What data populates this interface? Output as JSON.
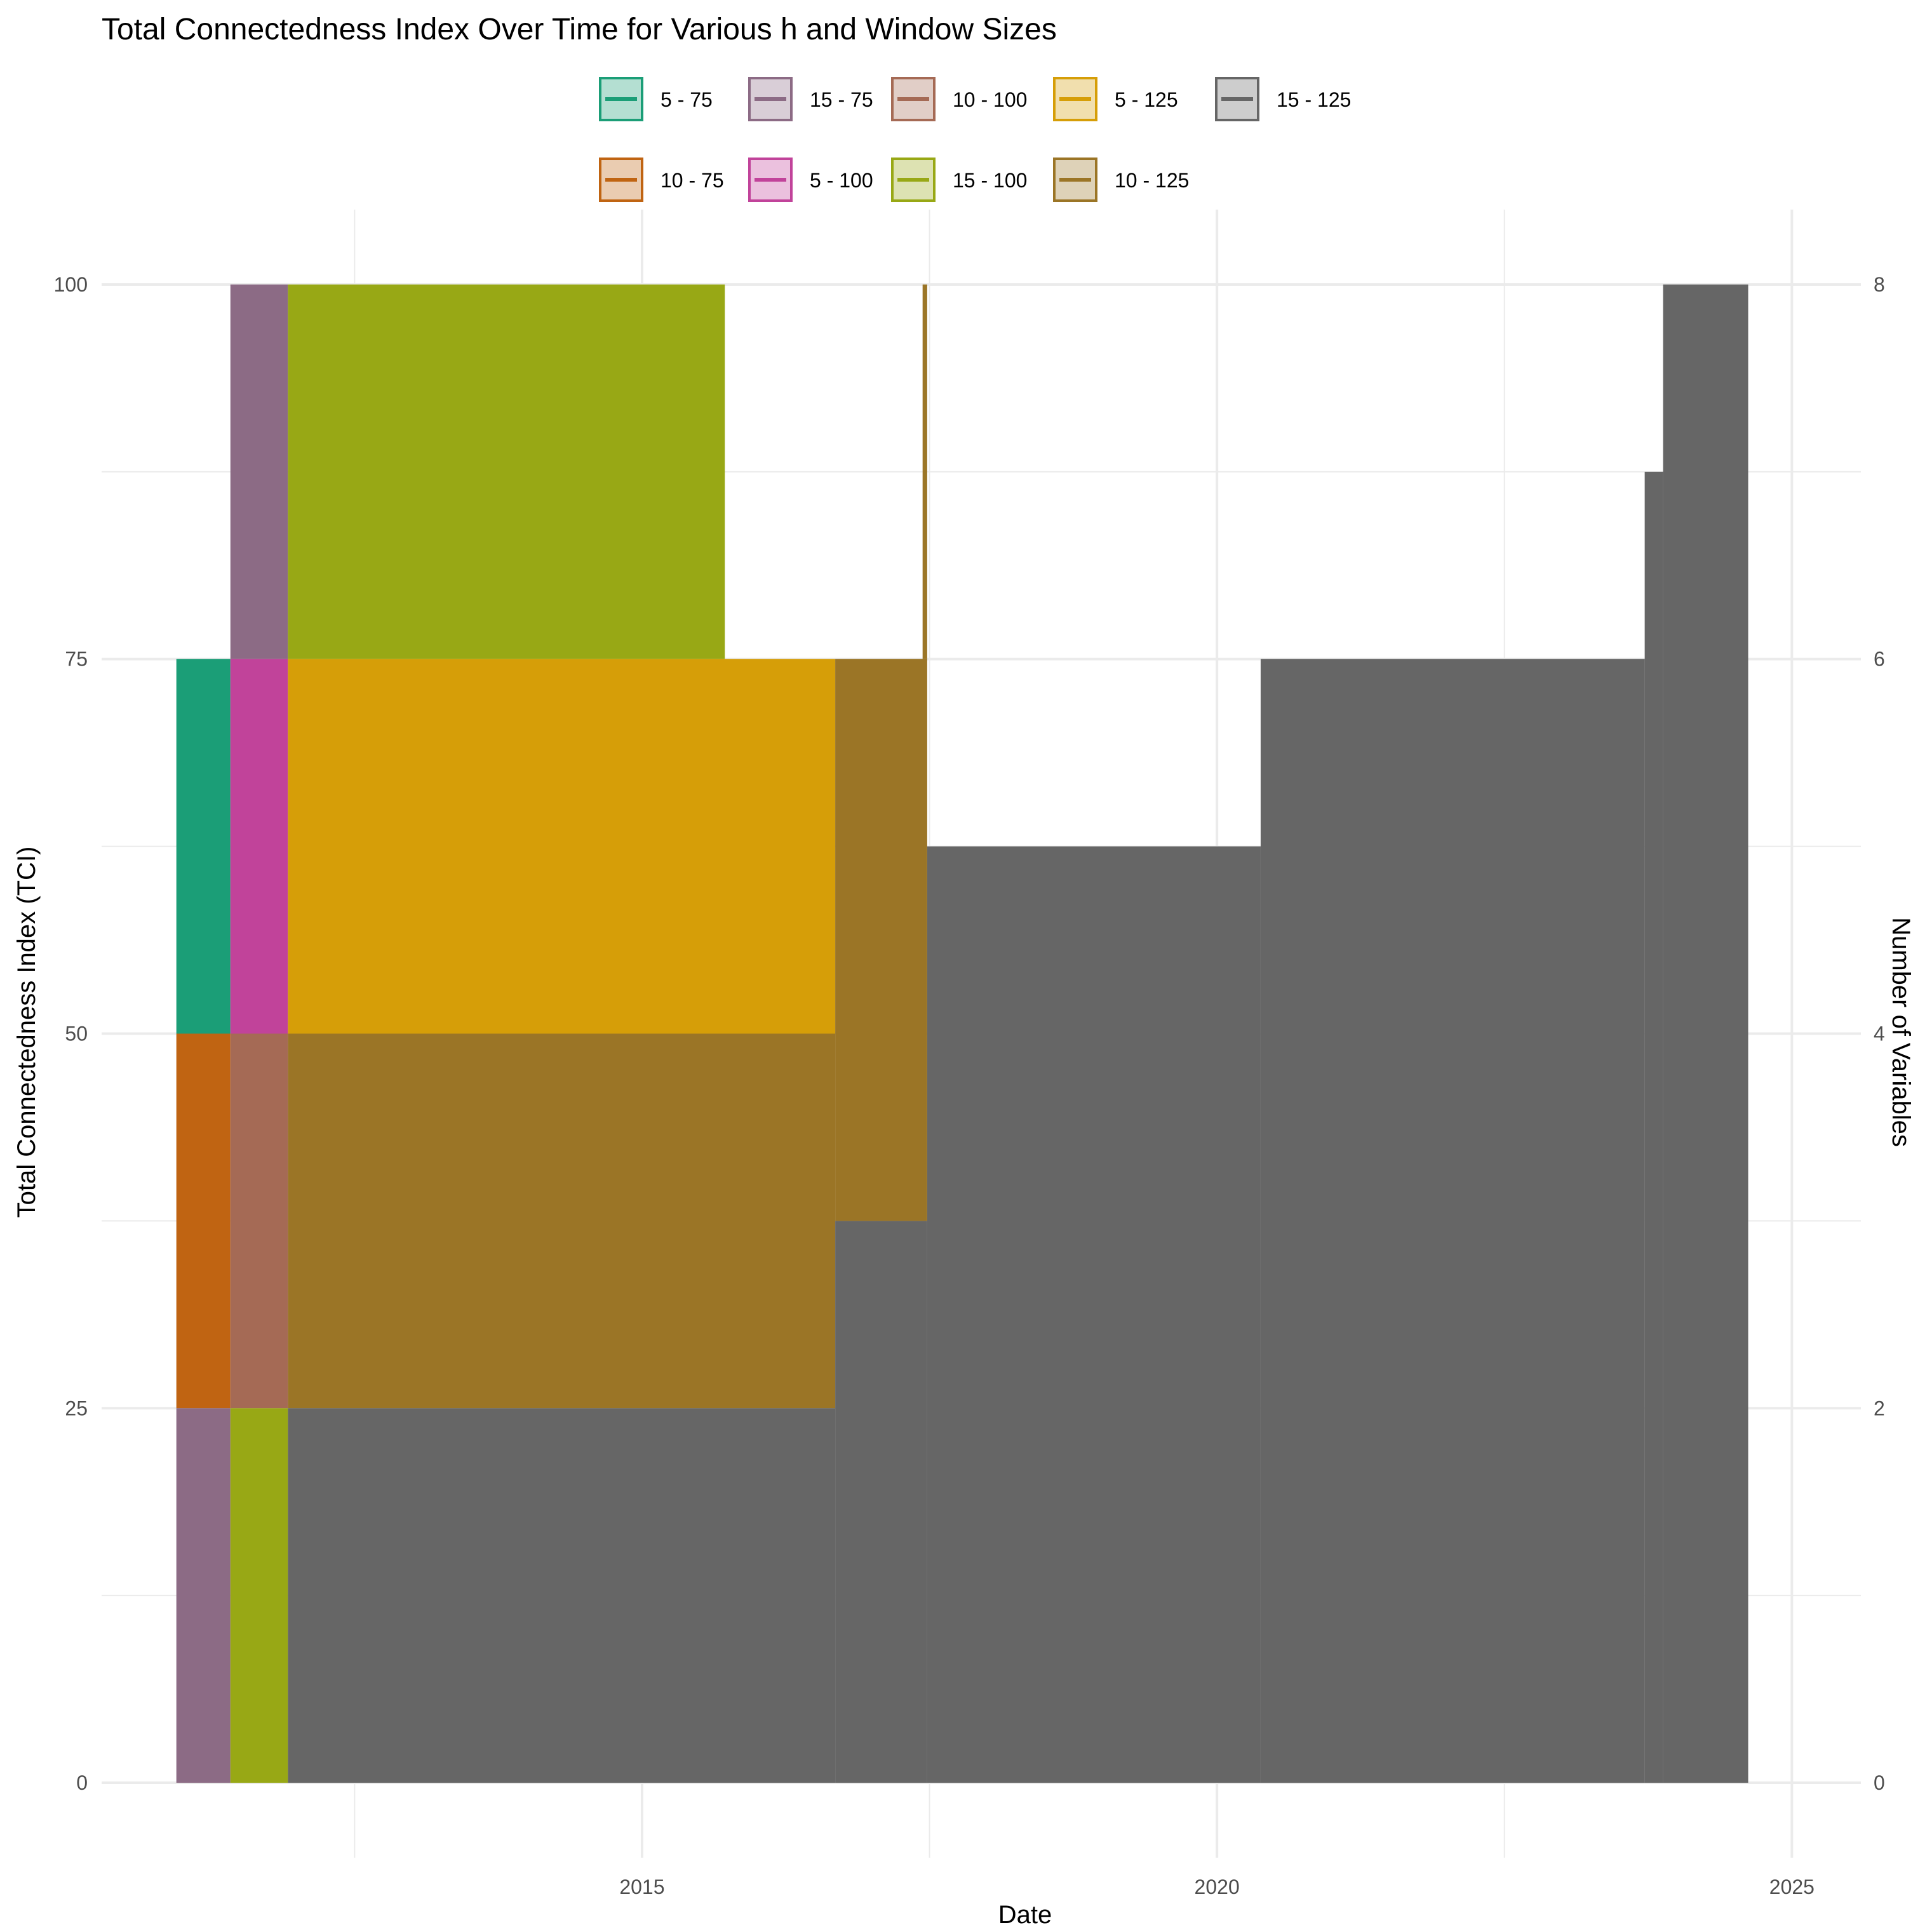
{
  "chart_data": {
    "type": "area",
    "title": "Total Connectedness Index Over Time for Various h and Window Sizes",
    "xlabel": "Date",
    "ylabel": "Total Connectedness Index (TCI)",
    "y2label": "Number of Variables",
    "xlim": [
      2010.3,
      2025.6
    ],
    "ylim": [
      -5,
      105
    ],
    "y2lim": [
      -0.4,
      8.4
    ],
    "x_ticks": [
      2015,
      2020,
      2025
    ],
    "y_ticks": [
      0,
      25,
      50,
      75,
      100
    ],
    "y2_ticks": [
      0,
      2,
      4,
      6,
      8
    ],
    "grid": true,
    "legend_position": "top",
    "series": [
      {
        "name": "5 - 75",
        "color": "#1b9e77",
        "blocks": [
          {
            "x0": 2010.95,
            "x1": 2011.42,
            "y0": 50,
            "y1": 75
          }
        ]
      },
      {
        "name": "10 - 75",
        "color": "#c06412",
        "blocks": [
          {
            "x0": 2010.95,
            "x1": 2011.42,
            "y0": 25,
            "y1": 50
          }
        ]
      },
      {
        "name": "15 - 75",
        "color": "#8c6b85",
        "blocks": [
          {
            "x0": 2010.95,
            "x1": 2011.42,
            "y0": 0,
            "y1": 25
          },
          {
            "x0": 2011.42,
            "x1": 2011.92,
            "y0": 75,
            "y1": 100
          }
        ]
      },
      {
        "name": "5 - 100",
        "color": "#c1439a",
        "blocks": [
          {
            "x0": 2011.42,
            "x1": 2011.92,
            "y0": 50,
            "y1": 75
          }
        ]
      },
      {
        "name": "10 - 100",
        "color": "#a56a55",
        "blocks": [
          {
            "x0": 2011.42,
            "x1": 2011.92,
            "y0": 25,
            "y1": 50
          }
        ]
      },
      {
        "name": "15 - 100",
        "color": "#98a815",
        "blocks": [
          {
            "x0": 2011.42,
            "x1": 2011.92,
            "y0": 0,
            "y1": 25
          },
          {
            "x0": 2011.92,
            "x1": 2015.72,
            "y0": 75,
            "y1": 100
          }
        ]
      },
      {
        "name": "5 - 125",
        "color": "#d69e08",
        "blocks": [
          {
            "x0": 2011.92,
            "x1": 2016.68,
            "y0": 50,
            "y1": 75
          }
        ]
      },
      {
        "name": "10 - 125",
        "color": "#9b7526",
        "blocks": [
          {
            "x0": 2011.92,
            "x1": 2016.68,
            "y0": 25,
            "y1": 50
          },
          {
            "x0": 2016.68,
            "x1": 2017.48,
            "y0": 37.5,
            "y1": 75
          },
          {
            "x0": 2017.44,
            "x1": 2017.48,
            "y0": 75,
            "y1": 100
          }
        ]
      },
      {
        "name": "15 - 125",
        "color": "#666666",
        "blocks": [
          {
            "x0": 2011.92,
            "x1": 2016.68,
            "y0": 0,
            "y1": 25
          },
          {
            "x0": 2016.68,
            "x1": 2017.48,
            "y0": 0,
            "y1": 37.5
          },
          {
            "x0": 2017.48,
            "x1": 2020.38,
            "y0": 0,
            "y1": 62.5
          },
          {
            "x0": 2020.38,
            "x1": 2023.72,
            "y0": 0,
            "y1": 75
          },
          {
            "x0": 2023.72,
            "x1": 2023.88,
            "y0": 0,
            "y1": 87.5
          },
          {
            "x0": 2023.88,
            "x1": 2024.62,
            "y0": 0,
            "y1": 100
          }
        ]
      }
    ]
  }
}
